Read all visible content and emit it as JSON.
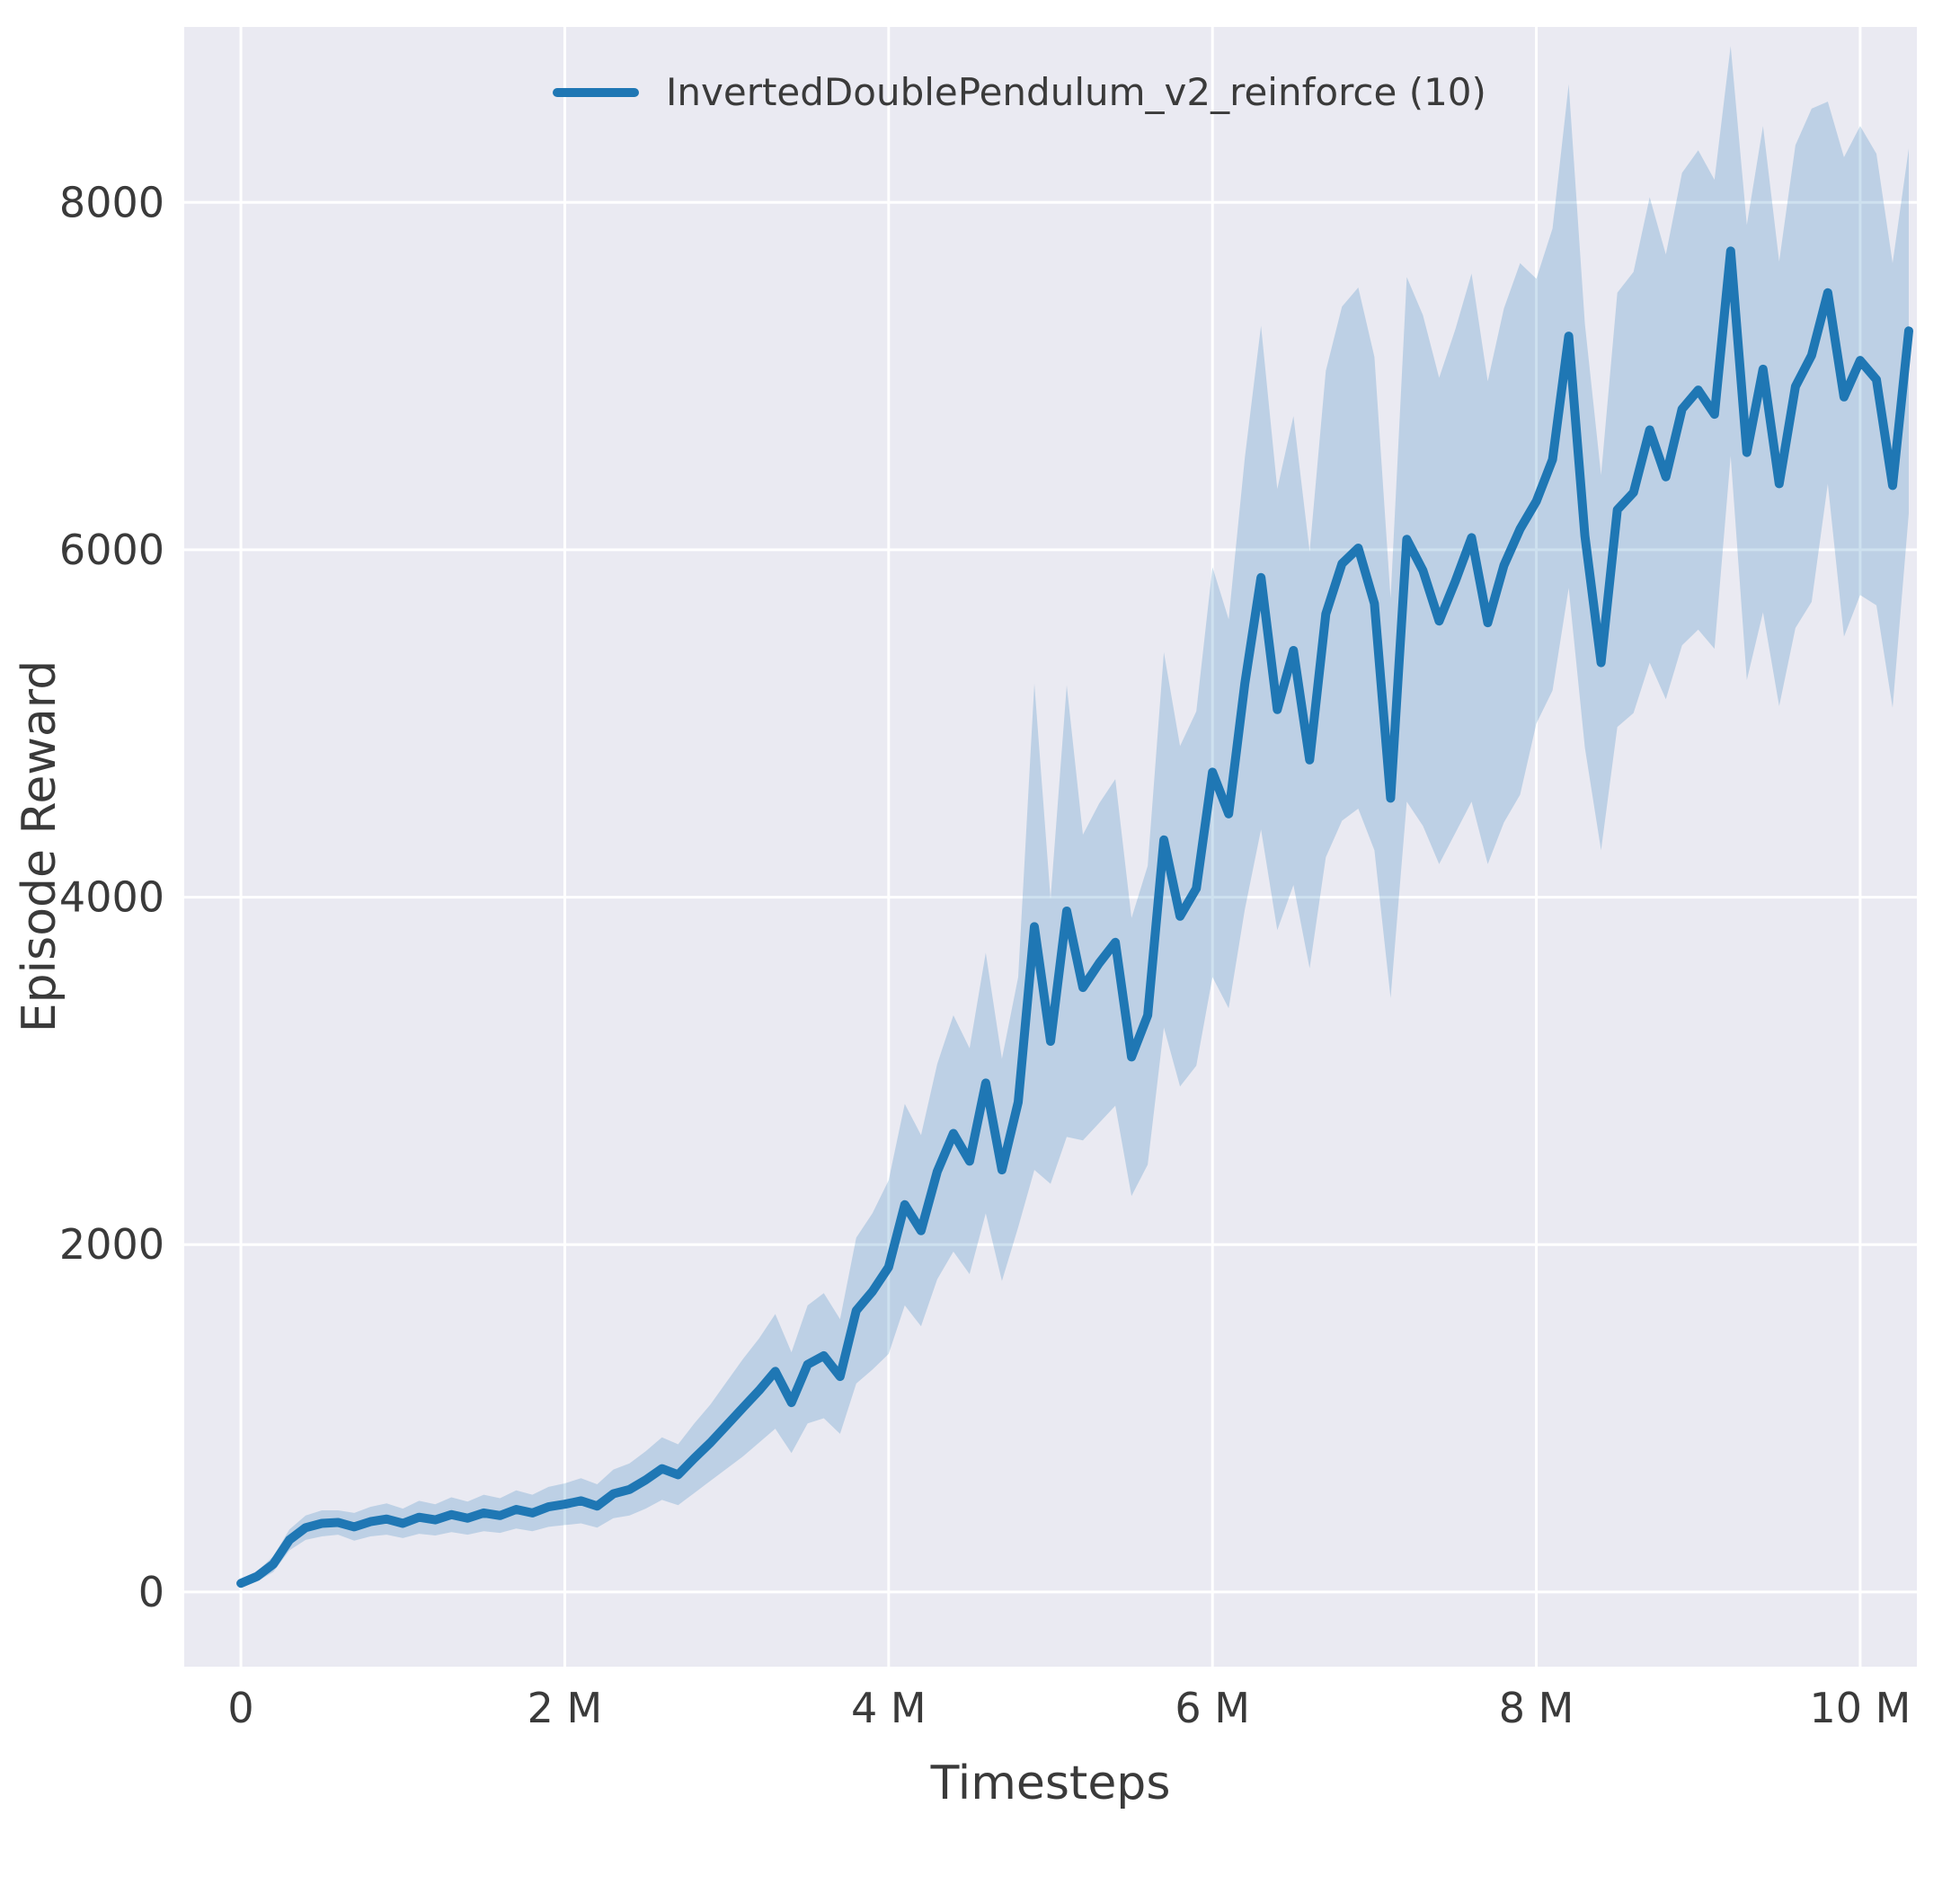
{
  "chart_data": {
    "type": "line",
    "title": "",
    "xlabel": "Timesteps",
    "ylabel": "Episode Reward",
    "x_unit": "millions of timesteps",
    "grid": true,
    "legend_position": "upper center",
    "xlim": [
      -0.35,
      10.35
    ],
    "ylim": [
      -430,
      9010
    ],
    "xticks": [
      {
        "v": 0,
        "label": "0"
      },
      {
        "v": 2,
        "label": "2 M"
      },
      {
        "v": 4,
        "label": "4 M"
      },
      {
        "v": 6,
        "label": "6 M"
      },
      {
        "v": 8,
        "label": "8 M"
      },
      {
        "v": 10,
        "label": "10 M"
      }
    ],
    "yticks": [
      {
        "v": 0,
        "label": "0"
      },
      {
        "v": 2000,
        "label": "2000"
      },
      {
        "v": 4000,
        "label": "4000"
      },
      {
        "v": 6000,
        "label": "6000"
      },
      {
        "v": 8000,
        "label": "8000"
      }
    ],
    "colors": {
      "line": "#1f77b4",
      "band": "#1f77b4",
      "band_opacity": 0.22,
      "plot_bg": "#eaeaf2",
      "grid": "#ffffff",
      "text": "#3a3a3a"
    },
    "series": [
      {
        "name": "InvertedDoublePendulum_v2_reinforce (10)",
        "color": "#1f77b4",
        "x_start": 0.0,
        "x_step": 0.1,
        "mean": [
          50,
          90,
          160,
          300,
          370,
          395,
          400,
          375,
          405,
          420,
          395,
          430,
          415,
          445,
          425,
          455,
          440,
          475,
          455,
          490,
          505,
          525,
          495,
          565,
          590,
          645,
          710,
          675,
          770,
          860,
          960,
          1060,
          1160,
          1270,
          1090,
          1310,
          1360,
          1240,
          1620,
          1730,
          1870,
          2230,
          2080,
          2420,
          2640,
          2480,
          2930,
          2430,
          2820,
          3830,
          3170,
          3920,
          3480,
          3620,
          3740,
          3080,
          3320,
          4330,
          3890,
          4050,
          4720,
          4480,
          5230,
          5840,
          5080,
          5420,
          4790,
          5630,
          5920,
          6010,
          5690,
          4570,
          6060,
          5880,
          5590,
          5820,
          6070,
          5580,
          5910,
          6120,
          6280,
          6520,
          7230,
          6080,
          5350,
          6230,
          6330,
          6690,
          6420,
          6810,
          6920,
          6780,
          7720,
          6560,
          7040,
          6380,
          6940,
          7120,
          7480,
          6880,
          7090,
          6980,
          6370,
          7260
        ],
        "spread": [
          25,
          30,
          45,
          60,
          70,
          75,
          70,
          80,
          85,
          90,
          85,
          95,
          90,
          100,
          95,
          105,
          100,
          110,
          105,
          115,
          120,
          130,
          125,
          140,
          150,
          165,
          180,
          175,
          200,
          220,
          250,
          280,
          300,
          330,
          290,
          340,
          360,
          330,
          420,
          450,
          500,
          580,
          550,
          620,
          680,
          650,
          750,
          640,
          720,
          1400,
          820,
          1300,
          880,
          920,
          940,
          800,
          860,
          1080,
          980,
          1020,
          1180,
          1120,
          1300,
          1450,
          1270,
          1350,
          1200,
          1400,
          1480,
          1500,
          1420,
          1150,
          1510,
          1470,
          1400,
          1450,
          1520,
          1390,
          1480,
          1530,
          1280,
          1330,
          1450,
          1220,
          1080,
          1250,
          1270,
          1340,
          1280,
          1360,
          1380,
          1350,
          1180,
          1310,
          1400,
          1280,
          1390,
          1420,
          1100,
          1380,
          1350,
          1300,
          1280,
          1050
        ]
      }
    ]
  },
  "layout_text": {
    "note": ""
  }
}
